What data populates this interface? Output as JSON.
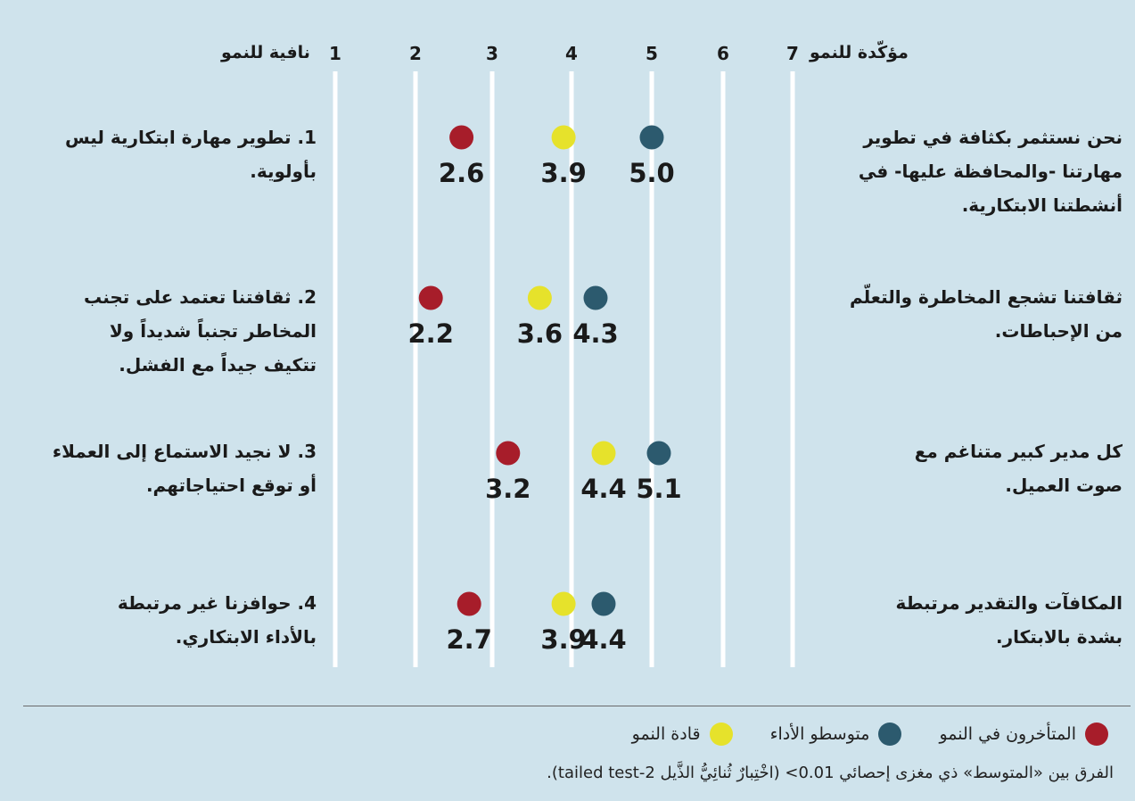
{
  "chart_data": {
    "type": "scatter",
    "scale_min_label": "نافية للنمو",
    "scale_max_label": "مؤكّدة للنمو",
    "xticks": [
      1,
      2,
      3,
      4,
      5,
      6,
      7
    ],
    "xlim": [
      1,
      7
    ],
    "grid": true,
    "colors": {
      "laggards": "#a71d2a",
      "leaders": "#e6e22b",
      "average": "#2c5a6e"
    },
    "items": [
      {
        "left_label": "1. تطوير مهارة ابتكارية ليس\nبأولوية.",
        "right_label": "نحن نستثمر بكثافة في تطوير\nمهارتنا -والمحافظة عليها- في\nأنشطتنا الابتكارية.",
        "laggards": 2.6,
        "laggards_label": "2.6",
        "leaders": 3.9,
        "leaders_label": "3.9",
        "average": 5.0,
        "average_label": "5.0"
      },
      {
        "left_label": "2. ثقافتنا تعتمد على تجنب\nالمخاطر تجنباً شديداً ولا\nتتكيف جيداً مع الفشل.",
        "right_label": "ثقافتنا تشجع المخاطرة والتعلّم\nمن الإحباطات.",
        "laggards": 2.2,
        "laggards_label": "2.2",
        "leaders": 3.6,
        "leaders_label": "3.6",
        "average": 4.3,
        "average_label": "4.3"
      },
      {
        "left_label": "3. لا نجيد الاستماع إلى العملاء\nأو توقع احتياجاتهم.",
        "right_label": "كل مدير كبير متناغم مع\nصوت العميل.",
        "laggards": 3.2,
        "laggards_label": "3.2",
        "leaders": 4.4,
        "leaders_label": "4.4",
        "average": 5.1,
        "average_label": "5.1"
      },
      {
        "left_label": "4. حوافزنا غير مرتبطة\nبالأداء الابتكاري.",
        "right_label": "المكافآت والتقدير مرتبطة\nبشدة بالابتكار.",
        "laggards": 2.7,
        "laggards_label": "2.7",
        "leaders": 3.9,
        "leaders_label": "3.9",
        "average": 4.4,
        "average_label": "4.4"
      }
    ]
  },
  "legend": {
    "laggards": "المتأخرون في النمو",
    "average": "متوسطو الأداء",
    "leaders": "قادة النمو"
  },
  "footnote": "الفرق بين «المتوسط» ذي مغزى إحصائي ‎<0.01‎ (اخْتِبارٌ ثُنائِيُّ الذَّيل 2-tailed test)."
}
